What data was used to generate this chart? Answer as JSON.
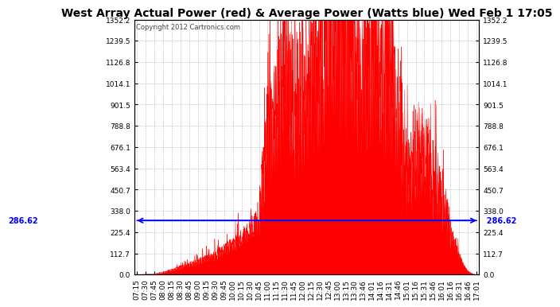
{
  "title": "West Array Actual Power (red) & Average Power (Watts blue) Wed Feb 1 17:05",
  "copyright": "Copyright 2012 Cartronics.com",
  "average_power": 286.62,
  "y_max": 1352.2,
  "y_min": 0.0,
  "y_ticks": [
    0.0,
    112.7,
    225.4,
    338.0,
    450.7,
    563.4,
    676.1,
    788.8,
    901.5,
    1014.1,
    1126.8,
    1239.5,
    1352.2
  ],
  "x_labels": [
    "07:15",
    "07:30",
    "07:45",
    "08:00",
    "08:15",
    "08:30",
    "08:45",
    "09:00",
    "09:15",
    "09:30",
    "09:45",
    "10:00",
    "10:15",
    "10:30",
    "10:45",
    "11:00",
    "11:15",
    "11:30",
    "11:45",
    "12:00",
    "12:15",
    "12:30",
    "12:45",
    "13:00",
    "13:15",
    "13:30",
    "13:46",
    "14:01",
    "14:16",
    "14:31",
    "14:46",
    "15:01",
    "15:16",
    "15:31",
    "15:46",
    "16:01",
    "16:16",
    "16:31",
    "16:46",
    "17:01"
  ],
  "title_fontsize": 10,
  "axis_fontsize": 6.5,
  "label_color": "#000000",
  "grid_color": "#aaaaaa",
  "fill_color": "#ff0000",
  "line_color": "#0000ff",
  "background_color": "#ffffff",
  "avg_label_fontsize": 7,
  "copyright_fontsize": 6
}
